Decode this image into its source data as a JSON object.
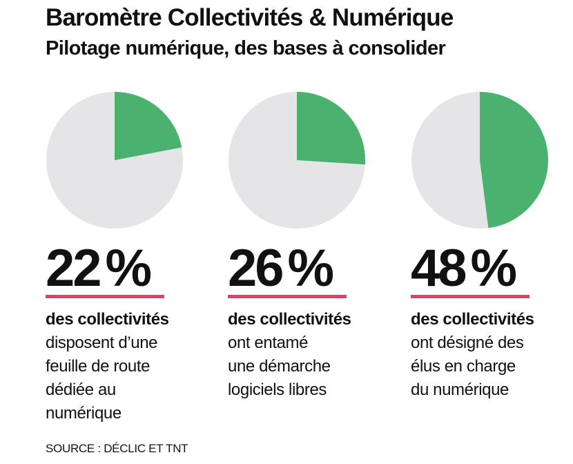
{
  "header": {
    "title": "Baromètre Collectivités & Numérique",
    "subtitle": "Pilotage numérique, des bases à consolider"
  },
  "colors": {
    "accent": "#4bb16e",
    "rest": "#e5e5e7",
    "underline": "#d2466a",
    "text": "#111111"
  },
  "chart_data": [
    {
      "type": "pie",
      "values": [
        22,
        78
      ],
      "percent_label": "22",
      "percent_sign": "%",
      "description_bold": "des collectivités",
      "description_lines": [
        "disposent d’une",
        "feuille de route",
        "dédiée au",
        "numérique"
      ]
    },
    {
      "type": "pie",
      "values": [
        26,
        74
      ],
      "percent_label": "26",
      "percent_sign": "%",
      "description_bold": "des collectivités",
      "description_lines": [
        "ont entamé",
        "une démarche",
        "logiciels libres"
      ]
    },
    {
      "type": "pie",
      "values": [
        48,
        52
      ],
      "percent_label": "48",
      "percent_sign": "%",
      "description_bold": "des collectivités",
      "description_lines": [
        "ont désigné des",
        "élus en charge",
        "du numérique"
      ]
    }
  ],
  "footer": {
    "source": "SOURCE : DÉCLIC ET TNT"
  }
}
